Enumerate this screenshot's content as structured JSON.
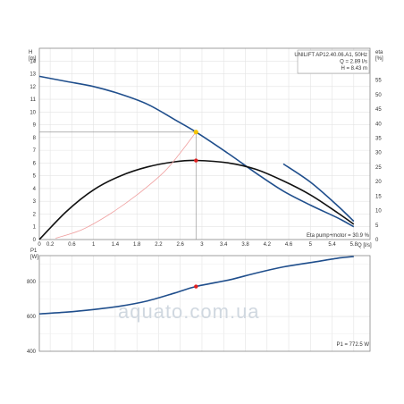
{
  "chart_data": [
    {
      "type": "line",
      "xlabel": "Q [l/s]",
      "ylabel_left": "H\n[m]",
      "ylabel_right": "eta\n[%]",
      "xlim": [
        0,
        6.1
      ],
      "ylim_left": [
        0,
        15
      ],
      "ylim_right": [
        0,
        66
      ],
      "x_ticks": [
        "0",
        "0.2",
        "0.6",
        "1",
        "1.4",
        "1.8",
        "2.2",
        "2.6",
        "3",
        "3.4",
        "3.8",
        "4.2",
        "4.6",
        "5",
        "5.4",
        "5.8"
      ],
      "y_ticks_left": [
        "0",
        "1",
        "2",
        "3",
        "4",
        "5",
        "6",
        "7",
        "8",
        "9",
        "10",
        "11",
        "12",
        "13",
        "14"
      ],
      "y_ticks_right": [
        "0",
        "5",
        "10",
        "15",
        "20",
        "25",
        "30",
        "35",
        "40",
        "45",
        "50",
        "55"
      ],
      "grid": true,
      "info_lines": [
        "UNILIFT AP12.40.06.A1, 50Hz",
        "Q = 2.89 l/s",
        "H = 8.43 m"
      ],
      "annotation": "Eta pump+motor = 30.9 %",
      "series": [
        {
          "axis": "left",
          "color": "#1f4e8c",
          "x": [
            0,
            0.5,
            1,
            1.5,
            2,
            2.5,
            2.89,
            3.5,
            4,
            4.5,
            5,
            5.5,
            5.8
          ],
          "values": [
            12.8,
            12.4,
            12.0,
            11.4,
            10.6,
            9.4,
            8.43,
            6.7,
            5.2,
            3.8,
            2.7,
            1.7,
            1.0
          ]
        },
        {
          "axis": "right",
          "color": "#1f4e8c",
          "x": [
            4.5,
            5,
            5.5,
            5.8
          ],
          "values": [
            26.1,
            19.8,
            11.7,
            6.3
          ]
        },
        {
          "axis": "left",
          "color": "#111111",
          "x": [
            0,
            0.5,
            1,
            1.5,
            2,
            2.5,
            2.89,
            3.5,
            4,
            4.5,
            5,
            5.5,
            5.8
          ],
          "values": [
            0,
            2.2,
            3.9,
            5.0,
            5.7,
            6.1,
            6.2,
            6.0,
            5.5,
            4.6,
            3.5,
            2.1,
            1.2
          ]
        },
        {
          "axis": "left",
          "color": "#f0a0a0",
          "x": [
            0.3,
            0.8,
            1.3,
            1.8,
            2.3,
            2.6,
            2.89
          ],
          "values": [
            0.1,
            0.8,
            2.0,
            3.5,
            5.3,
            6.8,
            8.43
          ]
        }
      ],
      "operating_point": {
        "x": 2.89,
        "H": 8.43,
        "eta": 30.9
      }
    },
    {
      "type": "line",
      "ylabel": "P1\n[W]",
      "xlim": [
        0,
        6.1
      ],
      "ylim": [
        400,
        950
      ],
      "y_ticks": [
        "400",
        "600",
        "800"
      ],
      "grid": true,
      "annotation": "P1 = 772.5 W",
      "series": [
        {
          "color": "#1f4e8c",
          "x": [
            0,
            0.5,
            1,
            1.5,
            2,
            2.5,
            2.89,
            3.5,
            4,
            4.5,
            5,
            5.5,
            5.8
          ],
          "values": [
            615,
            625,
            640,
            660,
            690,
            735,
            772.5,
            810,
            850,
            885,
            910,
            935,
            945
          ]
        }
      ],
      "operating_point": {
        "x": 2.89,
        "y": 772.5
      }
    }
  ],
  "watermark": "aquato.com.ua"
}
